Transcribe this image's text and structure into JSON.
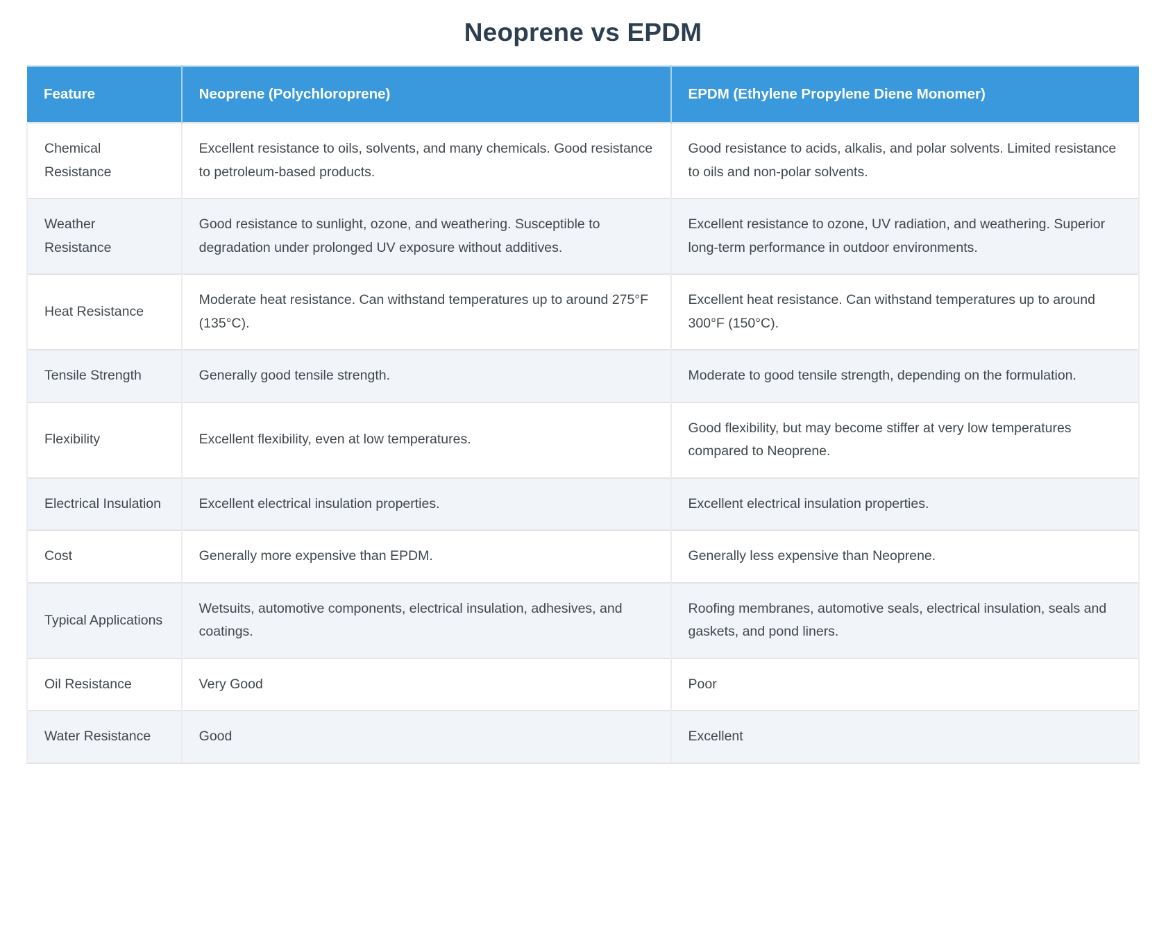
{
  "page": {
    "title": "Neoprene vs EPDM"
  },
  "colors": {
    "header_bg": "#3a99dc",
    "header_text": "#ffffff",
    "row_bg": "#ffffff",
    "row_alt_bg": "#f1f4f9",
    "body_text": "#40464b",
    "title_text": "#2d3e50",
    "border": "#e2e3e5"
  },
  "table": {
    "columns": [
      "Feature",
      "Neoprene (Polychloroprene)",
      "EPDM (Ethylene Propylene Diene Monomer)"
    ],
    "rows": [
      {
        "feature": "Chemical Resistance",
        "neoprene": "Excellent resistance to oils, solvents, and many chemicals. Good resistance to petroleum-based products.",
        "epdm": "Good resistance to acids, alkalis, and polar solvents. Limited resistance to oils and non-polar solvents."
      },
      {
        "feature": "Weather Resistance",
        "neoprene": "Good resistance to sunlight, ozone, and weathering. Susceptible to degradation under prolonged UV exposure without additives.",
        "epdm": "Excellent resistance to ozone, UV radiation, and weathering. Superior long-term performance in outdoor environments."
      },
      {
        "feature": "Heat Resistance",
        "neoprene": "Moderate heat resistance. Can withstand temperatures up to around 275°F (135°C).",
        "epdm": "Excellent heat resistance. Can withstand temperatures up to around 300°F (150°C)."
      },
      {
        "feature": "Tensile Strength",
        "neoprene": "Generally good tensile strength.",
        "epdm": "Moderate to good tensile strength, depending on the formulation."
      },
      {
        "feature": "Flexibility",
        "neoprene": "Excellent flexibility, even at low temperatures.",
        "epdm": "Good flexibility, but may become stiffer at very low temperatures compared to Neoprene."
      },
      {
        "feature": "Electrical Insulation",
        "neoprene": "Excellent electrical insulation properties.",
        "epdm": "Excellent electrical insulation properties."
      },
      {
        "feature": "Cost",
        "neoprene": "Generally more expensive than EPDM.",
        "epdm": "Generally less expensive than Neoprene."
      },
      {
        "feature": "Typical Applications",
        "neoprene": "Wetsuits, automotive components, electrical insulation, adhesives, and coatings.",
        "epdm": "Roofing membranes, automotive seals, electrical insulation, seals and gaskets, and pond liners."
      },
      {
        "feature": "Oil Resistance",
        "neoprene": "Very Good",
        "epdm": "Poor"
      },
      {
        "feature": "Water Resistance",
        "neoprene": "Good",
        "epdm": "Excellent"
      }
    ]
  }
}
